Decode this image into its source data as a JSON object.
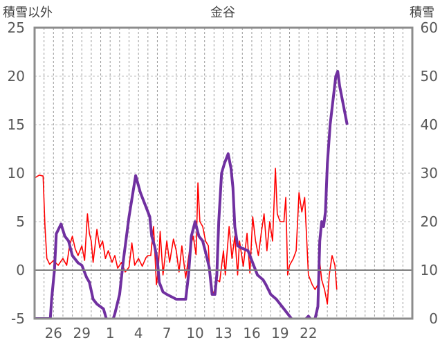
{
  "chart_data": {
    "type": "line",
    "title": "金谷",
    "left_axis_label": "積雪以外",
    "right_axis_label": "積雪",
    "y_left": {
      "min": -5,
      "max": 25,
      "ticks": [
        25,
        20,
        15,
        10,
        5,
        0,
        -5
      ]
    },
    "y_right": {
      "min": 0,
      "max": 60,
      "ticks": [
        60,
        50,
        40,
        30,
        20,
        10,
        0
      ]
    },
    "x": {
      "start": 0,
      "end": 40,
      "day_gridlines": 40,
      "ticks": [
        {
          "pos": 2,
          "label": "26"
        },
        {
          "pos": 5,
          "label": "29"
        },
        {
          "pos": 8,
          "label": "1"
        },
        {
          "pos": 11,
          "label": "4"
        },
        {
          "pos": 14,
          "label": "7"
        },
        {
          "pos": 17,
          "label": "10"
        },
        {
          "pos": 20,
          "label": "13"
        },
        {
          "pos": 23,
          "label": "16"
        },
        {
          "pos": 26,
          "label": "19"
        },
        {
          "pos": 29,
          "label": "22"
        }
      ]
    },
    "grid": true,
    "colors": {
      "red": "#ff0000",
      "purple": "#7030a0",
      "axis": "#8c8c8c",
      "zero": "#7f7f7f"
    },
    "series": [
      {
        "color": "#ff0000",
        "axis": "left",
        "points": [
          [
            0,
            9.5
          ],
          [
            0.5,
            9.8
          ],
          [
            0.9,
            9.7
          ],
          [
            1.1,
            4.5
          ],
          [
            1.3,
            1.2
          ],
          [
            1.6,
            0.6
          ],
          [
            2,
            1
          ],
          [
            2.5,
            0.5
          ],
          [
            3,
            1.2
          ],
          [
            3.4,
            0.5
          ],
          [
            3.7,
            2.5
          ],
          [
            4,
            3.5
          ],
          [
            4.3,
            2.2
          ],
          [
            4.6,
            1.5
          ],
          [
            5,
            2.5
          ],
          [
            5.3,
            1
          ],
          [
            5.6,
            5.8
          ],
          [
            5.8,
            3.8
          ],
          [
            6,
            3
          ],
          [
            6.2,
            0.8
          ],
          [
            6.6,
            4.2
          ],
          [
            6.9,
            2.3
          ],
          [
            7.2,
            3
          ],
          [
            7.5,
            1.2
          ],
          [
            7.8,
            2
          ],
          [
            8.2,
            0.8
          ],
          [
            8.5,
            1.5
          ],
          [
            8.8,
            0.2
          ],
          [
            9.2,
            0.8
          ],
          [
            9.6,
            -0.2
          ],
          [
            10,
            0.3
          ],
          [
            10.3,
            2.8
          ],
          [
            10.6,
            0.5
          ],
          [
            11,
            1.2
          ],
          [
            11.4,
            0.4
          ],
          [
            11.8,
            1.3
          ],
          [
            12,
            1.5
          ],
          [
            12.3,
            1.5
          ],
          [
            12.6,
            4.5
          ],
          [
            12.9,
            -1.5
          ],
          [
            13.1,
            0
          ],
          [
            13.3,
            4
          ],
          [
            13.6,
            -0.5
          ],
          [
            14,
            3
          ],
          [
            14.3,
            0.8
          ],
          [
            14.7,
            3.2
          ],
          [
            15,
            2
          ],
          [
            15.3,
            -0.2
          ],
          [
            15.6,
            2.5
          ],
          [
            16,
            -0.8
          ],
          [
            16.4,
            2
          ],
          [
            16.8,
            3.5
          ],
          [
            17.1,
            1.6
          ],
          [
            17.3,
            9
          ],
          [
            17.5,
            5
          ],
          [
            17.8,
            4.5
          ],
          [
            18.1,
            3
          ],
          [
            18.4,
            2.5
          ],
          [
            18.6,
            -1.5
          ],
          [
            19,
            -2.5
          ],
          [
            19.3,
            -1
          ],
          [
            19.6,
            -1.2
          ],
          [
            20,
            2
          ],
          [
            20.2,
            -0.5
          ],
          [
            20.6,
            4.5
          ],
          [
            20.9,
            1.2
          ],
          [
            21.2,
            3.5
          ],
          [
            21.5,
            -0.5
          ],
          [
            21.7,
            3
          ],
          [
            22.1,
            0.4
          ],
          [
            22.5,
            3.8
          ],
          [
            22.8,
            -0.3
          ],
          [
            23.1,
            5.5
          ],
          [
            23.4,
            3
          ],
          [
            23.7,
            1.5
          ],
          [
            24,
            3.8
          ],
          [
            24.3,
            5.8
          ],
          [
            24.6,
            2
          ],
          [
            24.9,
            5
          ],
          [
            25.2,
            3
          ],
          [
            25.5,
            10.5
          ],
          [
            25.7,
            5.8
          ],
          [
            26,
            5
          ],
          [
            26.4,
            5
          ],
          [
            26.6,
            7.5
          ],
          [
            26.8,
            -0.5
          ],
          [
            27,
            0.5
          ],
          [
            27.4,
            1.2
          ],
          [
            27.7,
            2
          ],
          [
            28,
            8
          ],
          [
            28.3,
            6
          ],
          [
            28.6,
            7.5
          ],
          [
            29,
            -0.5
          ],
          [
            29.4,
            -1.5
          ],
          [
            29.7,
            -2
          ],
          [
            30,
            -1.5
          ],
          [
            30.2,
            0.8
          ],
          [
            30.4,
            -1
          ],
          [
            30.7,
            -2
          ],
          [
            31,
            -3.5
          ],
          [
            31.2,
            -0.5
          ],
          [
            31.5,
            1.5
          ],
          [
            31.8,
            0.5
          ],
          [
            32,
            -2
          ]
        ]
      },
      {
        "color": "#7030a0",
        "axis": "right",
        "points": [
          [
            0,
            0
          ],
          [
            1.5,
            0
          ],
          [
            1.6,
            -2
          ],
          [
            1.8,
            4
          ],
          [
            2.1,
            10
          ],
          [
            2.3,
            17.5
          ],
          [
            2.8,
            19.5
          ],
          [
            3.2,
            17
          ],
          [
            3.6,
            16
          ],
          [
            4,
            13
          ],
          [
            4.6,
            11.5
          ],
          [
            5,
            11
          ],
          [
            5.5,
            8.5
          ],
          [
            5.8,
            7.5
          ],
          [
            6.2,
            4
          ],
          [
            6.6,
            3
          ],
          [
            7.3,
            2
          ],
          [
            7.6,
            0
          ],
          [
            8,
            -2
          ],
          [
            8.5,
            1
          ],
          [
            9,
            5
          ],
          [
            9.4,
            12
          ],
          [
            10,
            21
          ],
          [
            10.7,
            29.5
          ],
          [
            11.2,
            26
          ],
          [
            11.8,
            23
          ],
          [
            12.2,
            21
          ],
          [
            12.4,
            17
          ],
          [
            12.7,
            15
          ],
          [
            13,
            12
          ],
          [
            13.2,
            7.5
          ],
          [
            13.6,
            5.5
          ],
          [
            14,
            5
          ],
          [
            15,
            4
          ],
          [
            16,
            4
          ],
          [
            16.3,
            9
          ],
          [
            16.6,
            17
          ],
          [
            17,
            20
          ],
          [
            17.4,
            17
          ],
          [
            17.8,
            16
          ],
          [
            18.2,
            13
          ],
          [
            18.5,
            10.5
          ],
          [
            18.8,
            5
          ],
          [
            19.1,
            5
          ],
          [
            19.3,
            9
          ],
          [
            19.5,
            20
          ],
          [
            19.8,
            30
          ],
          [
            20.1,
            32
          ],
          [
            20.5,
            34
          ],
          [
            20.8,
            31
          ],
          [
            21,
            27
          ],
          [
            21.2,
            19
          ],
          [
            21.5,
            15
          ],
          [
            22,
            14.5
          ],
          [
            22.6,
            14
          ],
          [
            23,
            12
          ],
          [
            23.6,
            9
          ],
          [
            24.2,
            8
          ],
          [
            24.5,
            7
          ],
          [
            25,
            5
          ],
          [
            25.6,
            4
          ],
          [
            26,
            3
          ],
          [
            26.4,
            2
          ],
          [
            27.2,
            0
          ],
          [
            28,
            -2
          ],
          [
            28.5,
            -0.5
          ],
          [
            29,
            0.5
          ],
          [
            29.4,
            -0.5
          ],
          [
            29.7,
            0
          ],
          [
            30,
            2.5
          ],
          [
            30.2,
            16
          ],
          [
            30.4,
            20
          ],
          [
            30.6,
            19
          ],
          [
            30.8,
            22
          ],
          [
            31,
            32
          ],
          [
            31.3,
            40
          ],
          [
            31.6,
            45
          ],
          [
            31.9,
            50
          ],
          [
            32.1,
            51
          ],
          [
            32.3,
            48
          ],
          [
            32.6,
            45
          ],
          [
            32.9,
            42
          ],
          [
            33.1,
            40
          ]
        ]
      }
    ]
  }
}
